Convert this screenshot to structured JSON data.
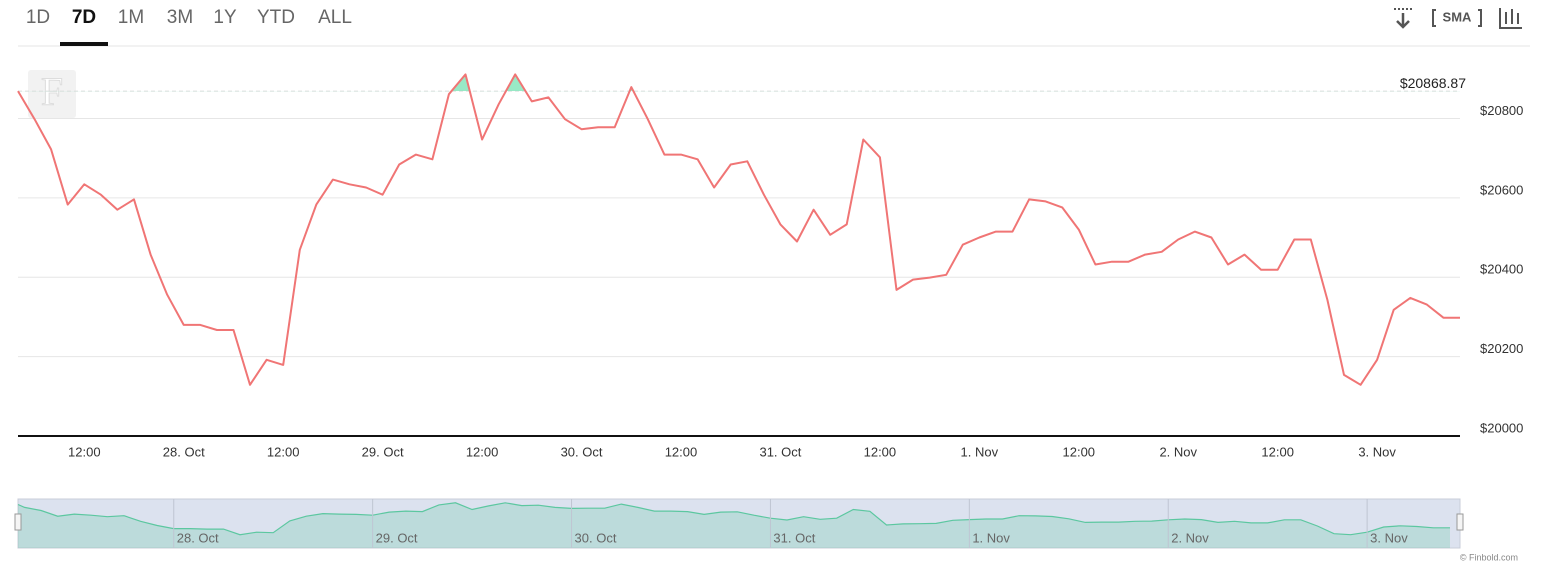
{
  "range_buttons": [
    "1D",
    "7D",
    "1M",
    "3M",
    "1Y",
    "YTD",
    "ALL"
  ],
  "active_range": 1,
  "toolbar": {
    "sma": "SMA"
  },
  "logo": "F",
  "credits": "© Finbold.com",
  "chart_data": {
    "type": "line",
    "categories": [
      null,
      null,
      null,
      null,
      "12:00",
      null,
      null,
      null,
      null,
      null,
      "28. Oct",
      null,
      null,
      null,
      null,
      null,
      "12:00",
      null,
      null,
      null,
      null,
      null,
      "29. Oct",
      null,
      null,
      null,
      null,
      null,
      "12:00",
      null,
      null,
      null,
      null,
      null,
      "30. Oct",
      null,
      null,
      null,
      null,
      null,
      "12:00",
      null,
      null,
      null,
      null,
      null,
      "31. Oct",
      null,
      null,
      null,
      null,
      null,
      "12:00",
      null,
      null,
      null,
      null,
      null,
      "1. Nov",
      null,
      null,
      null,
      null,
      null,
      "12:00",
      null,
      null,
      null,
      null,
      null,
      "2. Nov",
      null,
      null,
      null,
      null,
      null,
      "12:00",
      null,
      null,
      null,
      null,
      null,
      "3. Nov",
      null,
      null,
      null,
      null,
      null
    ],
    "series": [
      {
        "color": "#f07575",
        "values": [
          20869,
          20798,
          20722,
          20583,
          20634,
          20608,
          20570,
          20596,
          20457,
          20356,
          20280,
          20280,
          20267,
          20267,
          20129,
          20192,
          20179,
          20469,
          20583,
          20646,
          20634,
          20626,
          20608,
          20684,
          20709,
          20697,
          20861,
          20911,
          20747,
          20836,
          20911,
          20843,
          20853,
          20798,
          20773,
          20778,
          20778,
          20879,
          20798,
          20709,
          20709,
          20697,
          20626,
          20684,
          20692,
          20608,
          20533,
          20490,
          20570,
          20507,
          20533,
          20747,
          20702,
          20368,
          20394,
          20399,
          20406,
          20482,
          20500,
          20515,
          20515,
          20596,
          20591,
          20576,
          20520,
          20432,
          20439,
          20439,
          20457,
          20464,
          20495,
          20515,
          20500,
          20432,
          20457,
          20419,
          20419,
          20495,
          20495,
          20343,
          20154,
          20129,
          20192,
          20318,
          20348,
          20331,
          20298,
          20298
        ]
      }
    ],
    "reference": {
      "value": 20868.87,
      "label": "$20868.87",
      "above_color": "#7fe3b8"
    },
    "ylim": [
      20000,
      20980
    ],
    "yticks": [
      {
        "value": 20000,
        "label": "$20000"
      },
      {
        "value": 20200,
        "label": "$20200"
      },
      {
        "value": 20400,
        "label": "$20400"
      },
      {
        "value": 20600,
        "label": "$20600"
      },
      {
        "value": 20800,
        "label": "$20800"
      }
    ],
    "grid": true,
    "navigator_color": "#5cc7a0"
  }
}
